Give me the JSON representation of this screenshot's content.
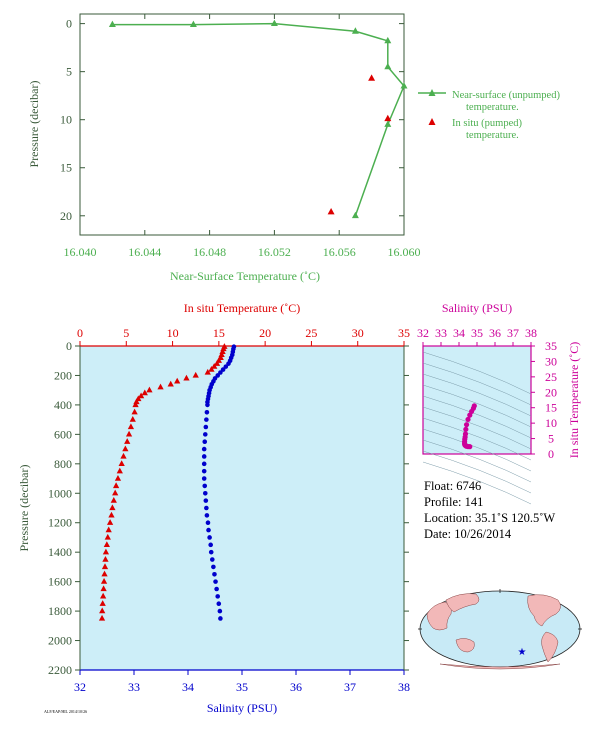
{
  "colors": {
    "green": "#4caf50",
    "red": "#dd0000",
    "blue": "#0000cc",
    "magenta": "#cc0099",
    "panel_bg": "#cdeef8",
    "axis_dark": "#3a5a3a"
  },
  "chart_data": [
    {
      "type": "line",
      "xlabel": "Near-Surface Temperature (˚C)",
      "ylabel": "Pressure (decibar)",
      "xlim": [
        16.04,
        16.06
      ],
      "ylim": [
        22,
        -1
      ],
      "x_ticks": [
        "16.040",
        "16.044",
        "16.048",
        "16.052",
        "16.056",
        "16.060"
      ],
      "y_ticks": [
        "0",
        "5",
        "10",
        "15",
        "20"
      ],
      "legend_position": "right",
      "series": [
        {
          "name": "Near-surface (unpumped) temperature.",
          "marker": "triangle",
          "line": true,
          "points": [
            [
              16.042,
              0.1
            ],
            [
              16.047,
              0.1
            ],
            [
              16.052,
              0.0
            ],
            [
              16.057,
              0.8
            ],
            [
              16.059,
              1.8
            ],
            [
              16.059,
              4.5
            ],
            [
              16.06,
              6.5
            ],
            [
              16.059,
              10.5
            ],
            [
              16.057,
              20.0
            ]
          ]
        },
        {
          "name": "In situ (pumped) temperature.",
          "marker": "triangle",
          "line": false,
          "points": [
            [
              16.058,
              5.7
            ],
            [
              16.059,
              9.9
            ],
            [
              16.0555,
              19.6
            ]
          ]
        }
      ]
    },
    {
      "type": "scatter",
      "xlabel_top": "In situ Temperature (˚C)",
      "xlabel_bottom": "Salinity (PSU)",
      "ylabel": "Pressure (decibar)",
      "temp_lim": [
        0,
        35
      ],
      "sal_lim": [
        32,
        38
      ],
      "ylim": [
        2200,
        0
      ],
      "temp_ticks": [
        "0",
        "5",
        "10",
        "15",
        "20",
        "25",
        "30",
        "35"
      ],
      "sal_ticks": [
        "32",
        "33",
        "34",
        "35",
        "36",
        "37",
        "38"
      ],
      "y_ticks": [
        "0",
        "200",
        "400",
        "600",
        "800",
        "1000",
        "1200",
        "1400",
        "1600",
        "1800",
        "2000",
        "2200"
      ],
      "series": [
        {
          "name": "In situ Temperature",
          "marker": "triangle",
          "points": [
            [
              15.6,
              5
            ],
            [
              15.5,
              20
            ],
            [
              15.4,
              40
            ],
            [
              15.3,
              60
            ],
            [
              15.2,
              80
            ],
            [
              15.0,
              100
            ],
            [
              14.8,
              120
            ],
            [
              14.5,
              140
            ],
            [
              14.2,
              160
            ],
            [
              13.8,
              180
            ],
            [
              12.5,
              200
            ],
            [
              11.5,
              220
            ],
            [
              10.5,
              240
            ],
            [
              9.8,
              260
            ],
            [
              8.7,
              280
            ],
            [
              7.5,
              300
            ],
            [
              7.0,
              320
            ],
            [
              6.6,
              340
            ],
            [
              6.3,
              360
            ],
            [
              6.1,
              380
            ],
            [
              6.0,
              400
            ],
            [
              5.9,
              450
            ],
            [
              5.7,
              500
            ],
            [
              5.5,
              550
            ],
            [
              5.3,
              600
            ],
            [
              5.1,
              650
            ],
            [
              4.9,
              700
            ],
            [
              4.7,
              750
            ],
            [
              4.5,
              800
            ],
            [
              4.3,
              850
            ],
            [
              4.1,
              900
            ],
            [
              3.9,
              950
            ],
            [
              3.8,
              1000
            ],
            [
              3.65,
              1050
            ],
            [
              3.5,
              1100
            ],
            [
              3.4,
              1150
            ],
            [
              3.25,
              1200
            ],
            [
              3.1,
              1250
            ],
            [
              3.0,
              1300
            ],
            [
              2.9,
              1350
            ],
            [
              2.8,
              1400
            ],
            [
              2.75,
              1450
            ],
            [
              2.7,
              1500
            ],
            [
              2.65,
              1550
            ],
            [
              2.6,
              1600
            ],
            [
              2.55,
              1650
            ],
            [
              2.5,
              1700
            ],
            [
              2.45,
              1750
            ],
            [
              2.4,
              1800
            ],
            [
              2.38,
              1850
            ]
          ]
        },
        {
          "name": "Salinity",
          "marker": "circle",
          "points": [
            [
              34.85,
              5
            ],
            [
              34.84,
              20
            ],
            [
              34.83,
              40
            ],
            [
              34.82,
              60
            ],
            [
              34.8,
              80
            ],
            [
              34.78,
              100
            ],
            [
              34.75,
              120
            ],
            [
              34.7,
              140
            ],
            [
              34.65,
              160
            ],
            [
              34.6,
              180
            ],
            [
              34.55,
              200
            ],
            [
              34.5,
              220
            ],
            [
              34.47,
              240
            ],
            [
              34.44,
              260
            ],
            [
              34.42,
              280
            ],
            [
              34.4,
              300
            ],
            [
              34.39,
              320
            ],
            [
              34.38,
              340
            ],
            [
              34.37,
              360
            ],
            [
              34.36,
              380
            ],
            [
              34.36,
              400
            ],
            [
              34.35,
              450
            ],
            [
              34.34,
              500
            ],
            [
              34.33,
              550
            ],
            [
              34.32,
              600
            ],
            [
              34.31,
              650
            ],
            [
              34.3,
              700
            ],
            [
              34.3,
              750
            ],
            [
              34.3,
              800
            ],
            [
              34.3,
              850
            ],
            [
              34.3,
              900
            ],
            [
              34.31,
              950
            ],
            [
              34.32,
              1000
            ],
            [
              34.33,
              1050
            ],
            [
              34.34,
              1100
            ],
            [
              34.35,
              1150
            ],
            [
              34.37,
              1200
            ],
            [
              34.38,
              1250
            ],
            [
              34.4,
              1300
            ],
            [
              34.42,
              1350
            ],
            [
              34.43,
              1400
            ],
            [
              34.45,
              1450
            ],
            [
              34.47,
              1500
            ],
            [
              34.49,
              1550
            ],
            [
              34.51,
              1600
            ],
            [
              34.53,
              1650
            ],
            [
              34.55,
              1700
            ],
            [
              34.57,
              1750
            ],
            [
              34.59,
              1800
            ],
            [
              34.6,
              1850
            ]
          ]
        }
      ]
    },
    {
      "type": "scatter",
      "xlabel_top": "Salinity (PSU)",
      "ylabel_right": "In situ Temperature (˚C)",
      "sal_lim": [
        32,
        38
      ],
      "temp_lim": [
        0,
        35
      ],
      "sal_ticks": [
        "32",
        "33",
        "34",
        "35",
        "36",
        "37",
        "38"
      ],
      "temp_ticks": [
        "0",
        "5",
        "10",
        "15",
        "20",
        "25",
        "30",
        "35"
      ],
      "series": [
        {
          "name": "T-S",
          "marker": "circle",
          "points": [
            [
              34.85,
              15.6
            ],
            [
              34.8,
              14.8
            ],
            [
              34.7,
              13.8
            ],
            [
              34.6,
              12.6
            ],
            [
              34.5,
              11.2
            ],
            [
              34.42,
              9.5
            ],
            [
              34.38,
              8.0
            ],
            [
              34.36,
              6.5
            ],
            [
              34.34,
              5.5
            ],
            [
              34.32,
              4.8
            ],
            [
              34.31,
              4.0
            ],
            [
              34.31,
              3.4
            ],
            [
              34.32,
              3.0
            ],
            [
              34.36,
              2.7
            ],
            [
              34.42,
              2.5
            ],
            [
              34.5,
              2.4
            ],
            [
              34.6,
              2.38
            ]
          ]
        }
      ]
    }
  ],
  "info": {
    "float": "Float:  6746",
    "profile": "Profile:  141",
    "location": "Location:  35.1˚S  120.5˚W",
    "date": "Date:  10/26/2014"
  },
  "footer_text": "ALF/EAP/HIL 2014/10/26"
}
